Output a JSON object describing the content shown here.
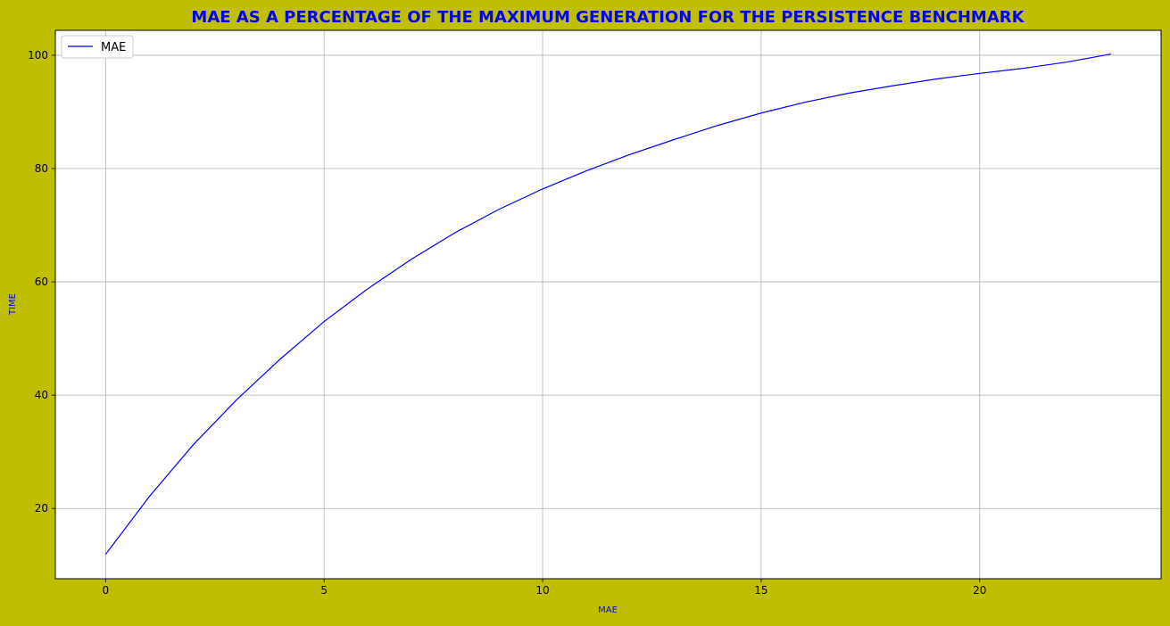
{
  "page": {
    "background_color": "#bfbf00"
  },
  "chart_data": {
    "type": "line",
    "title": "MAE AS A PERCENTAGE OF THE MAXIMUM GENERATION FOR THE PERSISTENCE BENCHMARK",
    "xlabel": "MAE",
    "ylabel": "TIME",
    "title_color": "#0000ff",
    "axis_label_color": "#0000ff",
    "xlim": [
      -1.15,
      24.15
    ],
    "ylim": [
      7.6,
      104.4
    ],
    "xticks": [
      0,
      5,
      10,
      15,
      20
    ],
    "xtick_labels": [
      "0",
      "5",
      "10",
      "15",
      "20"
    ],
    "yticks": [
      20,
      40,
      60,
      80,
      100
    ],
    "ytick_labels": [
      "20",
      "40",
      "60",
      "80",
      "100"
    ],
    "grid": true,
    "legend_position": "top-left",
    "series": [
      {
        "name": "MAE",
        "color": "#0000ff",
        "x": [
          0,
          1,
          2,
          3,
          4,
          5,
          6,
          7,
          8,
          9,
          10,
          11,
          12,
          13,
          14,
          15,
          16,
          17,
          18,
          19,
          20,
          21,
          22,
          23
        ],
        "y": [
          11.9,
          22.1,
          31.2,
          39.2,
          46.4,
          53.0,
          58.8,
          64.0,
          68.7,
          72.8,
          76.4,
          79.6,
          82.5,
          85.1,
          87.6,
          89.8,
          91.7,
          93.3,
          94.6,
          95.8,
          96.8,
          97.7,
          98.8,
          100.2
        ]
      }
    ]
  }
}
